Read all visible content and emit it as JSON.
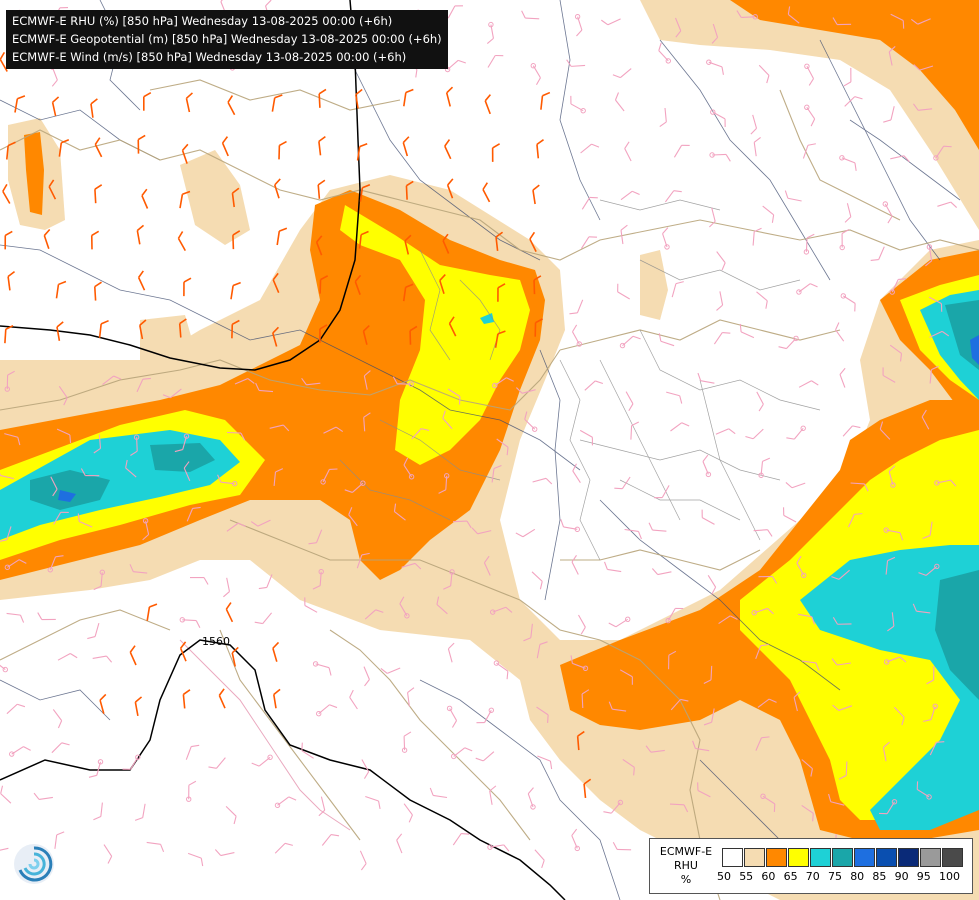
{
  "header": {
    "lines": [
      "ECMWF-E RHU (%) [850 hPa] Wednesday 13-08-2025 00:00 (+6h)",
      "ECMWF-E Geopotential (m) [850 hPa] Wednesday 13-08-2025 00:00 (+6h)",
      "ECMWF-E Wind (m/s) [850 hPa] Wednesday 13-08-2025 00:00 (+6h)"
    ]
  },
  "contour_label": "1560",
  "legend": {
    "lines": [
      "ECMWF-E",
      "RHU",
      "%"
    ],
    "ticks": [
      "50",
      "55",
      "60",
      "65",
      "70",
      "75",
      "80",
      "85",
      "90",
      "95",
      "100"
    ],
    "colors": [
      "#ffffff",
      "#f5dcb2",
      "#ff8800",
      "#ffff00",
      "#1ed1d6",
      "#1aa6a9",
      "#1e6fe0",
      "#0a4fb0",
      "#0a2a78",
      "#9a9a9a",
      "#4a4a4a"
    ]
  },
  "colors": {
    "rhu_55": "#f5dcb2",
    "rhu_60": "#ff8800",
    "rhu_65": "#ffff00",
    "rhu_70": "#1ed1d6",
    "rhu_75": "#1aa6a9",
    "rhu_80": "#1e6fe0",
    "rivers": "#3c4a6e",
    "borders_country": "#b8a47a",
    "borders_region": "#8c8c8c",
    "wind_weak": "#f2a3c0",
    "wind_strong": "#ff5a00",
    "geopotential_contour": "#000000"
  },
  "logo": {
    "icon": "ecmwf-logo-icon"
  }
}
